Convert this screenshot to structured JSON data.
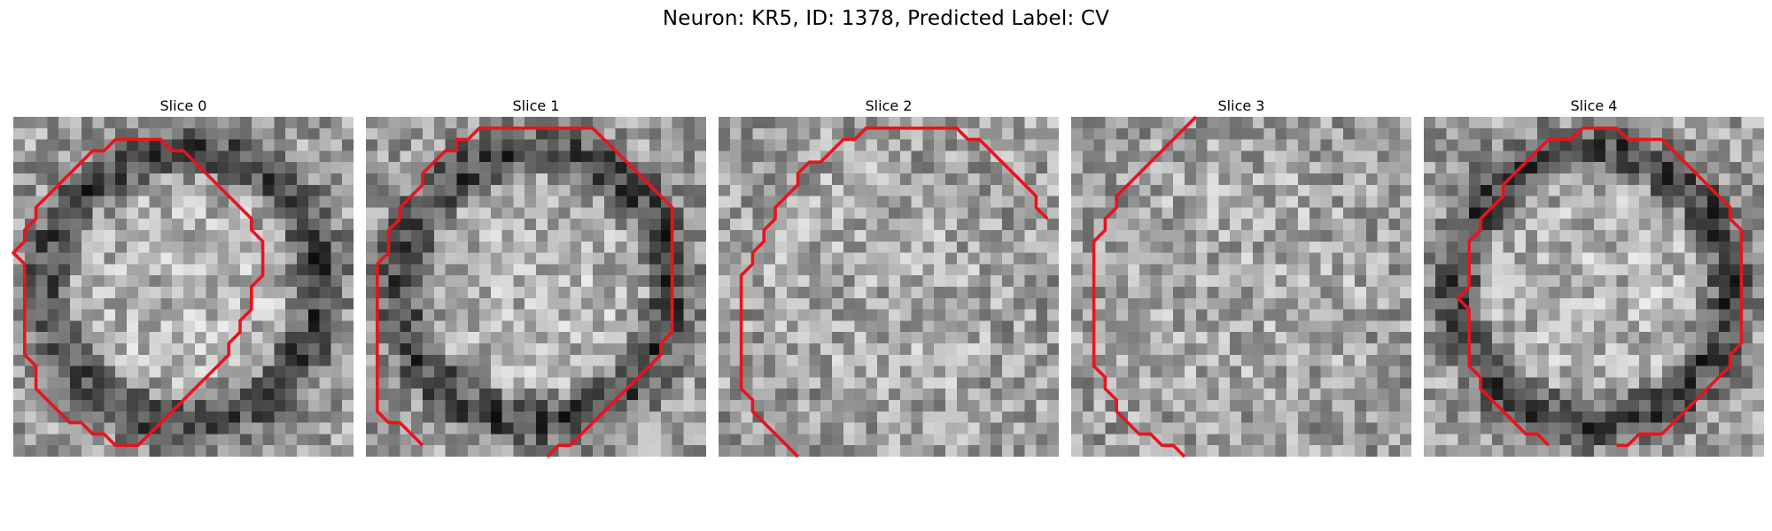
{
  "figure": {
    "title": "Neuron: KR5, ID: 1378, Predicted Label: CV"
  },
  "colors": {
    "contour": "#e8141c",
    "background": "#ffffff",
    "colormap": "grayscale"
  },
  "slices": [
    {
      "title": "Slice 0",
      "seed": 11,
      "darkRing": true,
      "contour": [
        [
          11,
          2
        ],
        [
          13,
          2
        ],
        [
          14,
          3
        ],
        [
          15,
          3
        ],
        [
          16,
          4
        ],
        [
          17,
          5
        ],
        [
          18,
          6
        ],
        [
          19,
          7
        ],
        [
          20,
          8
        ],
        [
          21,
          9
        ],
        [
          21,
          10
        ],
        [
          22,
          11
        ],
        [
          22,
          12
        ],
        [
          22,
          13
        ],
        [
          22,
          14
        ],
        [
          21,
          15
        ],
        [
          21,
          16
        ],
        [
          21,
          17
        ],
        [
          20,
          18
        ],
        [
          20,
          19
        ],
        [
          19,
          20
        ],
        [
          19,
          21
        ],
        [
          18,
          22
        ],
        [
          17,
          23
        ],
        [
          16,
          24
        ],
        [
          15,
          25
        ],
        [
          14,
          26
        ],
        [
          13,
          27
        ],
        [
          12,
          28
        ],
        [
          11,
          29
        ],
        [
          10,
          29
        ],
        [
          9,
          29
        ],
        [
          8,
          28
        ],
        [
          7,
          28
        ],
        [
          6,
          27
        ],
        [
          5,
          27
        ],
        [
          4,
          26
        ],
        [
          3,
          25
        ],
        [
          2,
          24
        ],
        [
          2,
          23
        ],
        [
          2,
          22
        ],
        [
          1,
          21
        ],
        [
          1,
          20
        ],
        [
          1,
          19
        ],
        [
          1,
          18
        ],
        [
          1,
          17
        ],
        [
          1,
          16
        ],
        [
          1,
          15
        ],
        [
          1,
          14
        ],
        [
          1,
          13
        ],
        [
          0,
          12
        ],
        [
          1,
          11
        ],
        [
          1,
          10
        ],
        [
          2,
          9
        ],
        [
          2,
          8
        ],
        [
          3,
          7
        ],
        [
          4,
          6
        ],
        [
          5,
          5
        ],
        [
          6,
          4
        ],
        [
          7,
          3
        ],
        [
          8,
          3
        ],
        [
          9,
          2
        ],
        [
          10,
          2
        ],
        [
          11,
          2
        ]
      ]
    },
    {
      "title": "Slice 1",
      "seed": 23,
      "darkRing": true,
      "contour": [
        [
          5,
          29
        ],
        [
          4,
          28
        ],
        [
          3,
          27
        ],
        [
          2,
          27
        ],
        [
          1,
          26
        ],
        [
          1,
          25
        ],
        [
          1,
          24
        ],
        [
          1,
          23
        ],
        [
          1,
          22
        ],
        [
          1,
          21
        ],
        [
          1,
          20
        ],
        [
          1,
          19
        ],
        [
          1,
          18
        ],
        [
          1,
          17
        ],
        [
          1,
          16
        ],
        [
          1,
          15
        ],
        [
          1,
          14
        ],
        [
          1,
          13
        ],
        [
          2,
          12
        ],
        [
          2,
          11
        ],
        [
          2,
          10
        ],
        [
          3,
          9
        ],
        [
          3,
          8
        ],
        [
          4,
          7
        ],
        [
          5,
          6
        ],
        [
          5,
          5
        ],
        [
          6,
          4
        ],
        [
          7,
          3
        ],
        [
          8,
          3
        ],
        [
          8,
          2
        ],
        [
          9,
          2
        ],
        [
          10,
          1
        ],
        [
          11,
          1
        ],
        [
          12,
          1
        ],
        [
          13,
          1
        ],
        [
          14,
          1
        ],
        [
          15,
          1
        ],
        [
          16,
          1
        ],
        [
          17,
          1
        ],
        [
          18,
          1
        ],
        [
          19,
          1
        ],
        [
          20,
          1
        ],
        [
          21,
          2
        ],
        [
          22,
          3
        ],
        [
          23,
          4
        ],
        [
          24,
          5
        ],
        [
          25,
          6
        ],
        [
          26,
          7
        ],
        [
          27,
          8
        ],
        [
          27,
          9
        ],
        [
          27,
          10
        ],
        [
          27,
          11
        ],
        [
          27,
          12
        ],
        [
          27,
          13
        ],
        [
          27,
          14
        ],
        [
          27,
          15
        ],
        [
          27,
          16
        ],
        [
          27,
          17
        ],
        [
          27,
          18
        ],
        [
          27,
          19
        ],
        [
          26,
          20
        ],
        [
          26,
          21
        ],
        [
          25,
          22
        ],
        [
          24,
          23
        ],
        [
          23,
          24
        ],
        [
          22,
          25
        ],
        [
          21,
          26
        ],
        [
          20,
          27
        ],
        [
          19,
          28
        ],
        [
          18,
          29
        ],
        [
          17,
          29
        ],
        [
          16,
          30
        ]
      ]
    },
    {
      "title": "Slice 2",
      "seed": 37,
      "darkRing": false,
      "contour": [
        [
          7,
          30
        ],
        [
          6,
          29
        ],
        [
          5,
          28
        ],
        [
          4,
          27
        ],
        [
          3,
          26
        ],
        [
          3,
          25
        ],
        [
          2,
          24
        ],
        [
          2,
          23
        ],
        [
          2,
          22
        ],
        [
          2,
          21
        ],
        [
          2,
          20
        ],
        [
          2,
          19
        ],
        [
          2,
          18
        ],
        [
          2,
          17
        ],
        [
          2,
          16
        ],
        [
          2,
          15
        ],
        [
          2,
          14
        ],
        [
          3,
          13
        ],
        [
          3,
          12
        ],
        [
          4,
          11
        ],
        [
          4,
          10
        ],
        [
          5,
          9
        ],
        [
          5,
          8
        ],
        [
          6,
          7
        ],
        [
          7,
          6
        ],
        [
          7,
          5
        ],
        [
          8,
          4
        ],
        [
          9,
          4
        ],
        [
          10,
          3
        ],
        [
          11,
          2
        ],
        [
          12,
          2
        ],
        [
          13,
          1
        ],
        [
          14,
          1
        ],
        [
          15,
          1
        ],
        [
          16,
          1
        ],
        [
          17,
          1
        ],
        [
          18,
          1
        ],
        [
          19,
          1
        ],
        [
          20,
          1
        ],
        [
          21,
          1
        ],
        [
          22,
          2
        ],
        [
          23,
          2
        ],
        [
          24,
          3
        ],
        [
          25,
          4
        ],
        [
          26,
          5
        ],
        [
          27,
          6
        ],
        [
          28,
          7
        ],
        [
          28,
          8
        ],
        [
          29,
          9
        ]
      ]
    },
    {
      "title": "Slice 3",
      "seed": 53,
      "darkRing": false,
      "contour": [
        [
          11,
          0
        ],
        [
          10,
          1
        ],
        [
          9,
          2
        ],
        [
          8,
          3
        ],
        [
          7,
          4
        ],
        [
          6,
          5
        ],
        [
          5,
          6
        ],
        [
          4,
          7
        ],
        [
          4,
          8
        ],
        [
          3,
          9
        ],
        [
          3,
          10
        ],
        [
          2,
          11
        ],
        [
          2,
          12
        ],
        [
          2,
          13
        ],
        [
          2,
          14
        ],
        [
          2,
          15
        ],
        [
          2,
          16
        ],
        [
          2,
          17
        ],
        [
          2,
          18
        ],
        [
          2,
          19
        ],
        [
          2,
          20
        ],
        [
          2,
          21
        ],
        [
          2,
          22
        ],
        [
          3,
          23
        ],
        [
          3,
          24
        ],
        [
          4,
          25
        ],
        [
          4,
          26
        ],
        [
          5,
          27
        ],
        [
          6,
          28
        ],
        [
          7,
          28
        ],
        [
          8,
          29
        ],
        [
          9,
          29
        ],
        [
          10,
          30
        ]
      ]
    },
    {
      "title": "Slice 4",
      "seed": 71,
      "darkRing": true,
      "contour": [
        [
          11,
          29
        ],
        [
          10,
          28
        ],
        [
          9,
          28
        ],
        [
          8,
          27
        ],
        [
          7,
          26
        ],
        [
          6,
          25
        ],
        [
          5,
          24
        ],
        [
          5,
          23
        ],
        [
          4,
          22
        ],
        [
          4,
          21
        ],
        [
          4,
          20
        ],
        [
          4,
          19
        ],
        [
          4,
          18
        ],
        [
          4,
          17
        ],
        [
          3,
          16
        ],
        [
          4,
          15
        ],
        [
          4,
          14
        ],
        [
          4,
          13
        ],
        [
          4,
          12
        ],
        [
          4,
          11
        ],
        [
          5,
          10
        ],
        [
          5,
          9
        ],
        [
          6,
          8
        ],
        [
          7,
          7
        ],
        [
          7,
          6
        ],
        [
          8,
          5
        ],
        [
          9,
          4
        ],
        [
          10,
          3
        ],
        [
          11,
          2
        ],
        [
          12,
          2
        ],
        [
          13,
          2
        ],
        [
          14,
          1
        ],
        [
          15,
          1
        ],
        [
          16,
          1
        ],
        [
          17,
          1
        ],
        [
          18,
          2
        ],
        [
          19,
          2
        ],
        [
          20,
          2
        ],
        [
          21,
          2
        ],
        [
          22,
          3
        ],
        [
          23,
          4
        ],
        [
          24,
          5
        ],
        [
          25,
          6
        ],
        [
          26,
          7
        ],
        [
          27,
          8
        ],
        [
          27,
          9
        ],
        [
          28,
          10
        ],
        [
          28,
          11
        ],
        [
          28,
          12
        ],
        [
          28,
          13
        ],
        [
          28,
          14
        ],
        [
          28,
          15
        ],
        [
          28,
          16
        ],
        [
          28,
          17
        ],
        [
          28,
          18
        ],
        [
          28,
          19
        ],
        [
          28,
          20
        ],
        [
          27,
          21
        ],
        [
          27,
          22
        ],
        [
          26,
          23
        ],
        [
          25,
          24
        ],
        [
          24,
          25
        ],
        [
          23,
          26
        ],
        [
          22,
          27
        ],
        [
          21,
          28
        ],
        [
          20,
          28
        ],
        [
          19,
          28
        ],
        [
          18,
          29
        ],
        [
          17,
          29
        ]
      ]
    }
  ]
}
